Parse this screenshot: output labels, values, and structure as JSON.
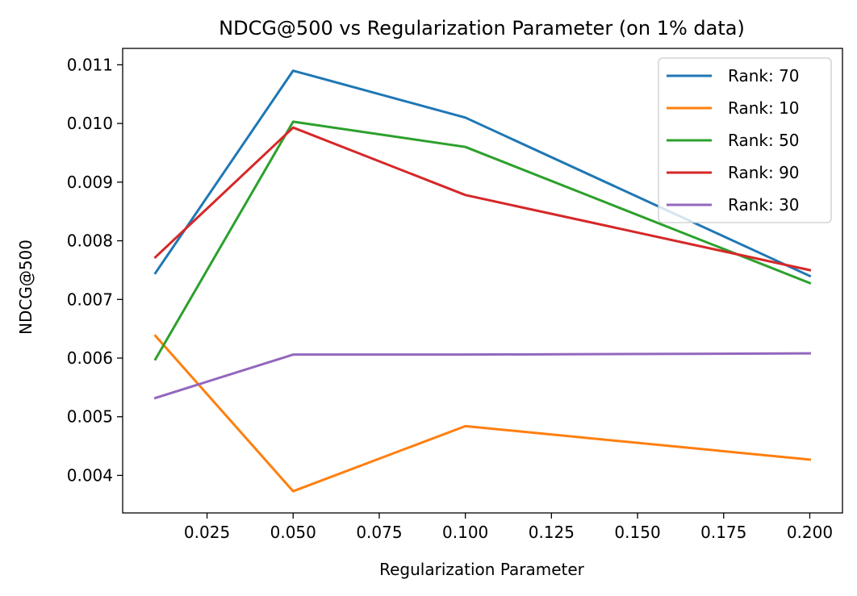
{
  "chart_data": {
    "type": "line",
    "title": "NDCG@500 vs Regularization Parameter (on 1% data)",
    "xlabel": "Regularization Parameter",
    "ylabel": "NDCG@500",
    "x": [
      0.01,
      0.05,
      0.1,
      0.2
    ],
    "xlim": [
      0.0005,
      0.2095
    ],
    "ylim": [
      0.00336,
      0.01128
    ],
    "x_ticks": [
      0.025,
      0.05,
      0.075,
      0.1,
      0.125,
      0.15,
      0.175,
      0.2
    ],
    "x_tick_labels": [
      "0.025",
      "0.050",
      "0.075",
      "0.100",
      "0.125",
      "0.150",
      "0.175",
      "0.200"
    ],
    "y_ticks": [
      0.004,
      0.005,
      0.006,
      0.007,
      0.008,
      0.009,
      0.01,
      0.011
    ],
    "y_tick_labels": [
      "0.004",
      "0.005",
      "0.006",
      "0.007",
      "0.008",
      "0.009",
      "0.010",
      "0.011"
    ],
    "grid": false,
    "legend_position": "top-right",
    "series": [
      {
        "name": "Rank: 70",
        "color": "#1f77b4",
        "values": [
          0.00745,
          0.0109,
          0.0101,
          0.0074
        ]
      },
      {
        "name": "Rank: 10",
        "color": "#ff7f0e",
        "values": [
          0.00638,
          0.00373,
          0.00484,
          0.00427
        ]
      },
      {
        "name": "Rank: 50",
        "color": "#2ca02c",
        "values": [
          0.00598,
          0.01003,
          0.0096,
          0.00728
        ]
      },
      {
        "name": "Rank: 90",
        "color": "#d62728",
        "values": [
          0.00772,
          0.00993,
          0.00878,
          0.0075
        ]
      },
      {
        "name": "Rank: 30",
        "color": "#9467bd",
        "values": [
          0.00532,
          0.00606,
          0.00606,
          0.00608
        ]
      }
    ]
  }
}
